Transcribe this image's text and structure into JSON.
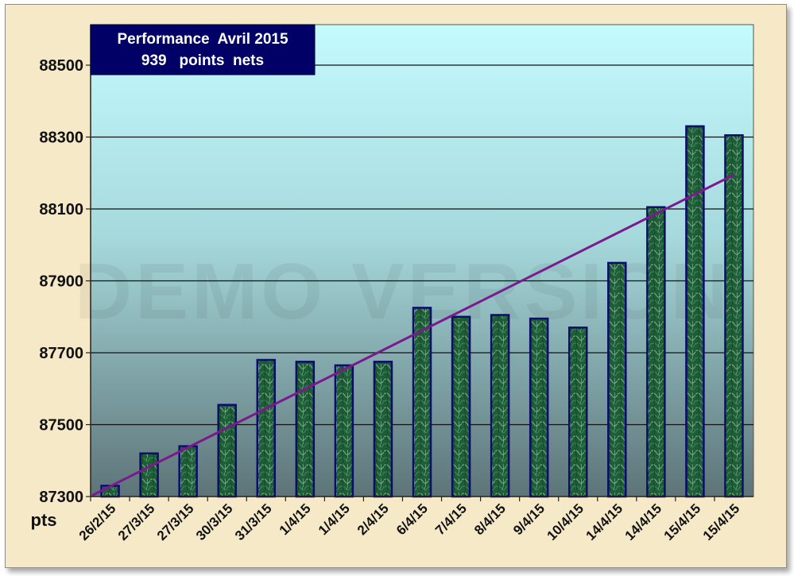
{
  "watermark": "DEMO VERSION",
  "chart_data": {
    "type": "bar",
    "title": "Performance  Avril 2015",
    "subtitle": "939   points  nets",
    "ylabel": "pts",
    "xlabel": "",
    "ylim": [
      87300,
      88600
    ],
    "yticks": [
      87300,
      87500,
      87700,
      87900,
      88100,
      88300,
      88500
    ],
    "grid": true,
    "legend": "none",
    "categories": [
      "26/2/15",
      "27/3/15",
      "27/3/15",
      "30/3/15",
      "31/3/15",
      "1/4/15",
      "1/4/15",
      "2/4/15",
      "6/4/15",
      "7/4/15",
      "8/4/15",
      "9/4/15",
      "10/4/15",
      "14/4/15",
      "14/4/15",
      "15/4/15",
      "15/4/15"
    ],
    "series": [
      {
        "values": [
          87330,
          87420,
          87440,
          87555,
          87680,
          87675,
          87665,
          87675,
          87825,
          87800,
          87805,
          87795,
          87770,
          87950,
          88105,
          88330,
          88305
        ]
      }
    ],
    "trendline": {
      "type": "linear",
      "start": 87330,
      "end": 88195
    },
    "colors": {
      "bar_fill": "#1e5a35",
      "bar_border": "#0c0c6e",
      "trend": "#7a1a8e",
      "title_box": "#000066",
      "plot_top": "#c4fbff",
      "plot_bottom": "#5d7478"
    }
  }
}
